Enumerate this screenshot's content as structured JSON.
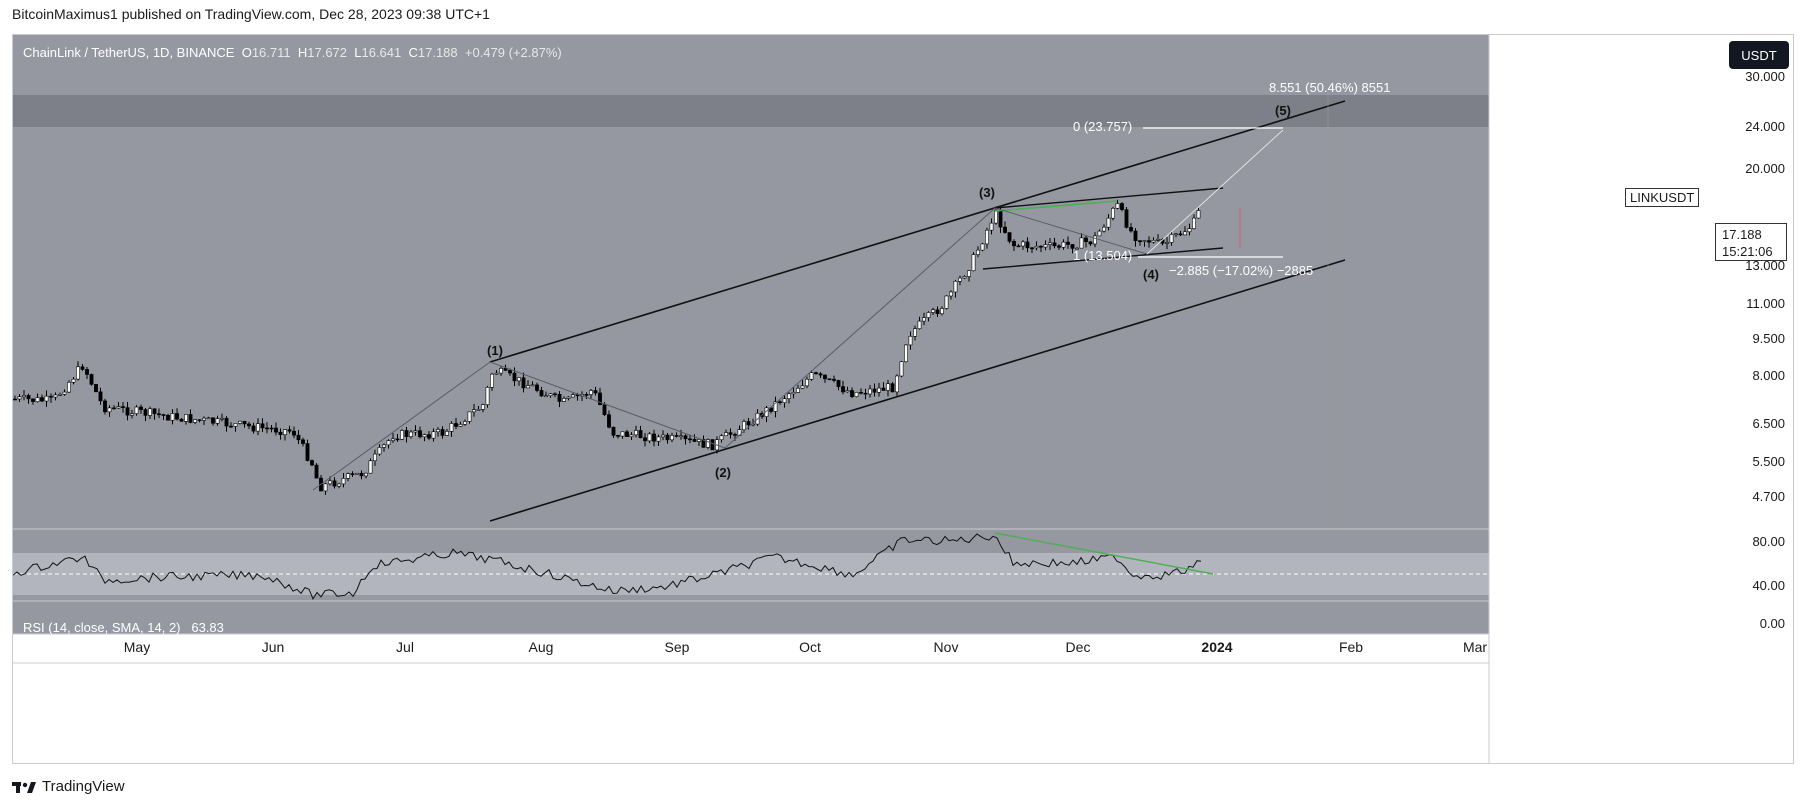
{
  "header": {
    "text": "BitcoinMaximus1 published on TradingView.com, Dec 28, 2023 09:38 UTC+1"
  },
  "ohlc": {
    "symbol": "ChainLink / TetherUS, 1D, BINANCE",
    "o_label": "O",
    "o": "16.711",
    "h_label": "H",
    "h": "17.672",
    "l_label": "L",
    "l": "16.641",
    "c_label": "C",
    "c": "17.188",
    "change": "+0.479 (+2.87%)"
  },
  "currency_button": "USDT",
  "symbol_tag": "LINKUSDT",
  "price_tag": {
    "price": "17.188",
    "countdown": "15:21:06"
  },
  "price_axis": [
    "30.000",
    "24.000",
    "20.000",
    "13.000",
    "11.000",
    "9.500",
    "8.000",
    "6.500",
    "5.500",
    "4.700"
  ],
  "rsi": {
    "title": "RSI (14, close, SMA, 14, 2)",
    "value": "63.83",
    "axis": [
      "80.00",
      "40.00",
      "0.00"
    ]
  },
  "time_axis": [
    "May",
    "Jun",
    "Jul",
    "Aug",
    "Sep",
    "Oct",
    "Nov",
    "Dec",
    "2024",
    "Feb",
    "Mar"
  ],
  "annotations": {
    "target": "8.551 (50.46%) 8551",
    "fib0": "0 (23.757)",
    "fib1": "1 (13.504)",
    "drop": "−2.885 (−17.02%) −2885"
  },
  "waves": [
    "(1)",
    "(2)",
    "(3)",
    "(4)",
    "(5)"
  ],
  "footer": {
    "brand": "TradingView"
  },
  "colors": {
    "pane_bg": "#9598a1",
    "resistance_band": "#7d8088",
    "green_line": "#4caf50",
    "candle_up": "#ffffff",
    "candle_down": "#000000"
  }
}
